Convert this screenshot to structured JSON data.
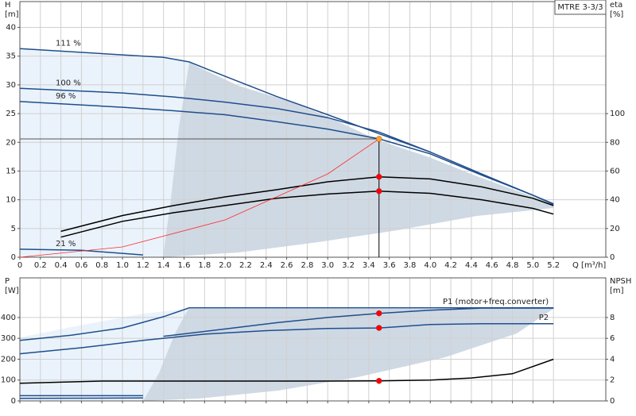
{
  "chart_data": [
    {
      "type": "line",
      "title": "MTRE 3-3/3",
      "y_label": "H",
      "y_unit": "[m]",
      "y2_label": "eta",
      "y2_unit": "[%]",
      "x_label": "Q [m³/h]",
      "xlim": [
        0,
        5.71
      ],
      "ylim": [
        0,
        44.5
      ],
      "y2lim": [
        0,
        178
      ],
      "grid": true,
      "xticks": [
        0,
        0.2,
        0.4,
        0.6,
        0.8,
        {
          "value": 1,
          "label": "1.0"
        },
        1.2,
        1.4,
        1.6,
        1.8,
        {
          "value": 2,
          "label": "2.0"
        },
        2.2,
        2.4,
        2.6,
        2.8,
        {
          "value": 3,
          "label": "3.0"
        },
        3.2,
        3.4,
        3.6,
        3.8,
        {
          "value": 4,
          "label": "4.0"
        },
        4.2,
        4.4,
        4.6,
        4.8,
        {
          "value": 5,
          "label": "5.0"
        },
        5.2
      ],
      "yticks": [
        0,
        5,
        10,
        15,
        20,
        25,
        30,
        35,
        40
      ],
      "y2ticks": [
        0,
        20,
        40,
        60,
        80,
        100
      ],
      "series": [
        {
          "name": "111 %",
          "color": "#1f4e8c",
          "x": [
            0,
            1.4,
            1.65,
            2.0,
            2.5,
            3.0,
            3.5,
            4.0,
            4.5,
            5.0,
            5.2
          ],
          "values": [
            36.3,
            34.8,
            34.0,
            31.5,
            28.0,
            24.8,
            21.5,
            18.3,
            14.5,
            10.8,
            9.3
          ]
        },
        {
          "name": "100 %",
          "color": "#1f4e8c",
          "x": [
            0,
            1.0,
            1.5,
            2.0,
            2.5,
            3.0,
            3.5,
            4.0
          ],
          "values": [
            29.4,
            28.6,
            27.9,
            27.0,
            25.9,
            24.3,
            21.8,
            18.3
          ]
        },
        {
          "name": "96 %",
          "color": "#1f4e8c",
          "x": [
            0,
            1.0,
            1.5,
            2.0,
            2.5,
            3.0,
            3.5,
            4.0,
            4.5,
            5.0,
            5.2
          ],
          "values": [
            27.1,
            26.1,
            25.5,
            24.8,
            23.6,
            22.3,
            20.6,
            18.0,
            14.3,
            10.8,
            9.2
          ]
        },
        {
          "name": "21 %",
          "color": "#1f4e8c",
          "x": [
            0,
            0.6,
            1.2
          ],
          "values": [
            1.4,
            1.2,
            0.4
          ]
        },
        {
          "color": "#000000",
          "axis": "y2",
          "x": [
            0.4,
            1.0,
            1.5,
            2.0,
            2.5,
            3.0,
            3.5,
            4.0,
            4.5,
            5.0,
            5.2
          ],
          "values": [
            18,
            29,
            36,
            42,
            47,
            52.5,
            56,
            54.5,
            49,
            41,
            36
          ]
        },
        {
          "color": "#000000",
          "axis": "y2",
          "x": [
            0.4,
            1.0,
            1.5,
            2.0,
            2.5,
            3.0,
            3.5,
            4.0,
            4.5,
            5.0,
            5.2
          ],
          "values": [
            14,
            25,
            31,
            36,
            41,
            44,
            46,
            44.5,
            40,
            34,
            30
          ]
        },
        {
          "color": "#ff2a2a",
          "x": [
            0,
            1.0,
            2.0,
            3.0,
            3.5
          ],
          "values": [
            0,
            1.8,
            6.5,
            14.5,
            20.6
          ]
        }
      ],
      "markers": [
        {
          "x": 3.5,
          "y": 20.6,
          "color": "#f5a623"
        },
        {
          "x": 3.5,
          "y": 56,
          "axis": "y2",
          "color": "#ff0000"
        },
        {
          "x": 3.5,
          "y": 46,
          "axis": "y2",
          "color": "#ff0000"
        }
      ]
    },
    {
      "type": "line",
      "y_label": "P",
      "y_unit": "[W]",
      "y2_label": "NPSH",
      "y2_unit": "[m]",
      "xlim": [
        0,
        5.71
      ],
      "ylim": [
        0,
        590
      ],
      "y2lim": [
        0,
        11.8
      ],
      "grid": true,
      "xticks": [
        0,
        0.2,
        0.4,
        0.6,
        0.8,
        1,
        1.2,
        1.4,
        1.6,
        1.8,
        2,
        2.2,
        2.4,
        2.6,
        2.8,
        3,
        3.2,
        3.4,
        3.6,
        3.8,
        4,
        4.2,
        4.4,
        4.6,
        4.8,
        5,
        5.2
      ],
      "yticks": [
        0,
        100,
        200,
        300,
        400
      ],
      "y2ticks": [
        0,
        2,
        4,
        6,
        8
      ],
      "series": [
        {
          "color": "#1f4e8c",
          "x": [
            0,
            0.5,
            1.0,
            1.4,
            1.65,
            5.2
          ],
          "values": [
            290,
            315,
            350,
            404,
            446,
            446
          ]
        },
        {
          "name": "P1 (motor+freq.converter)",
          "color": "#1f4e8c",
          "x": [
            1.4,
            2.0,
            2.5,
            3.0,
            3.5,
            4.0,
            4.5,
            5.2
          ],
          "values": [
            310,
            345,
            375,
            400,
            420,
            435,
            445,
            445
          ]
        },
        {
          "name": "P2",
          "color": "#1f4e8c",
          "x": [
            0,
            0.6,
            1.2,
            1.8,
            2.4,
            3.0,
            3.5,
            4.0,
            4.5,
            5.2
          ],
          "values": [
            226,
            255,
            290,
            320,
            337,
            347,
            350,
            366,
            370,
            370
          ]
        },
        {
          "color": "#1f4e8c",
          "x": [
            0,
            1.2
          ],
          "values": [
            25,
            25
          ]
        },
        {
          "color": "#1f4e8c",
          "x": [
            0,
            1.2
          ],
          "values": [
            12,
            14
          ]
        },
        {
          "color": "#000000",
          "axis": "y2",
          "x": [
            0,
            0.8,
            2.0,
            3.0,
            3.5,
            4.0,
            4.4,
            4.8,
            5.2
          ],
          "values": [
            1.7,
            1.9,
            1.9,
            1.9,
            1.92,
            2.0,
            2.2,
            2.6,
            4.0
          ]
        }
      ],
      "markers": [
        {
          "x": 3.5,
          "y": 420,
          "color": "#ff0000"
        },
        {
          "x": 3.5,
          "y": 350,
          "color": "#ff0000"
        },
        {
          "x": 3.5,
          "y": 1.92,
          "axis": "y2",
          "color": "#ff0000"
        }
      ]
    }
  ]
}
